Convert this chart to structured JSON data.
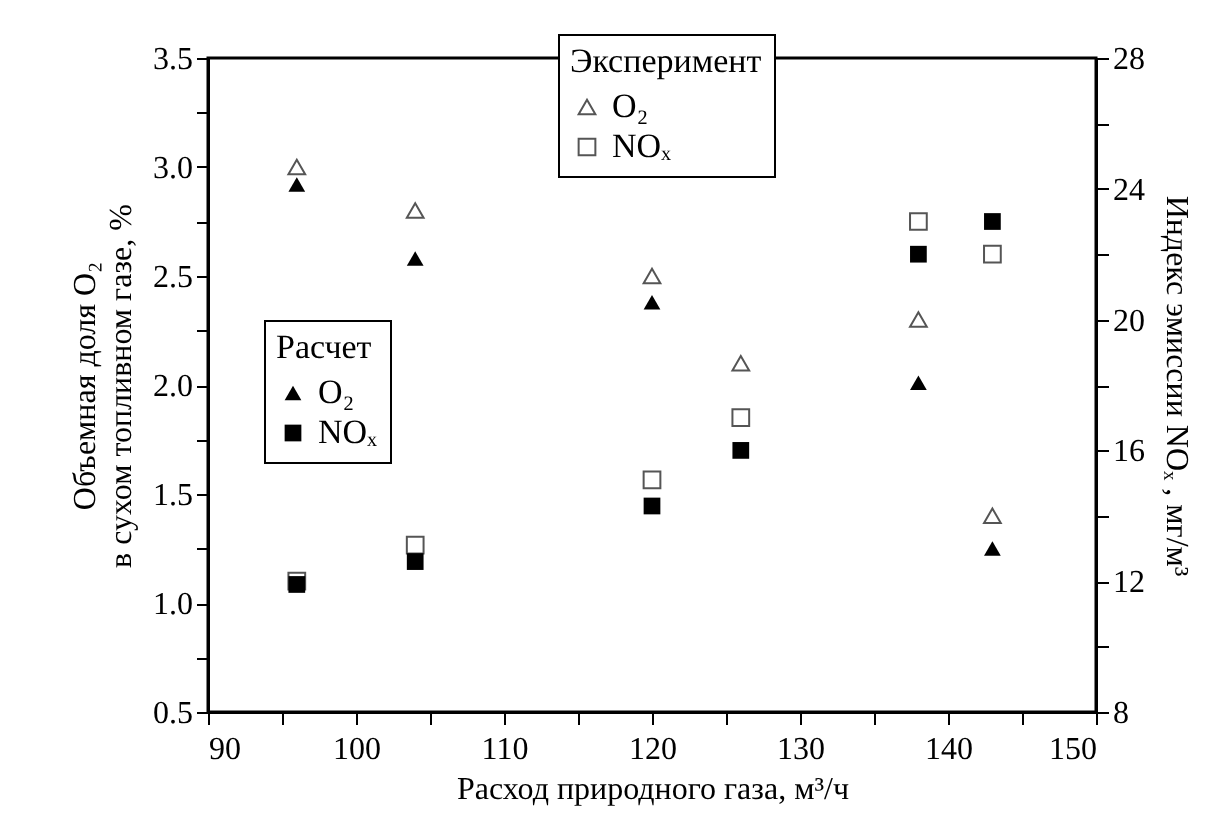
{
  "chart_data": {
    "type": "scatter",
    "xlabel": "Расход природного газа, м³/ч",
    "ylabel": "Объемная доля O₂\nв сухом топливном газе, %",
    "y2label": "Индекс эмиссии NOₓ , мг/м³",
    "legend_title": [
      "Эксперимент",
      "Расчет"
    ],
    "legend": [
      "top",
      "left"
    ],
    "xlim": [
      90,
      150
    ],
    "xticks": [
      90,
      {
        "value": 95,
        "label": null
      },
      100,
      {
        "value": 105,
        "label": null
      },
      110,
      {
        "value": 115,
        "label": null
      },
      120,
      {
        "value": 125,
        "label": null
      },
      130,
      {
        "value": 135,
        "label": null
      },
      140,
      {
        "value": 145,
        "label": null
      },
      150
    ],
    "ylim": [
      0.5,
      3.5
    ],
    "yticks": [
      {
        "value": 0.5,
        "label": "0.5"
      },
      {
        "value": 0.75,
        "label": null
      },
      {
        "value": 1,
        "label": "1.0"
      },
      {
        "value": 1.25,
        "label": null
      },
      {
        "value": 1.5,
        "label": "1.5"
      },
      {
        "value": 1.75,
        "label": null
      },
      {
        "value": 2,
        "label": "2.0"
      },
      {
        "value": 2.25,
        "label": null
      },
      {
        "value": 2.5,
        "label": "2.5"
      },
      {
        "value": 2.75,
        "label": null
      },
      {
        "value": 3,
        "label": "3.0"
      },
      {
        "value": 3.25,
        "label": null
      },
      {
        "value": 3.5,
        "label": "3.5"
      }
    ],
    "y2lim": [
      8,
      28
    ],
    "y2ticks": [
      8,
      {
        "value": 10,
        "label": null
      },
      12,
      {
        "value": 14,
        "label": null
      },
      16,
      {
        "value": 18,
        "label": null
      },
      20,
      {
        "value": 22,
        "label": null
      },
      24,
      {
        "value": 26,
        "label": null
      },
      28
    ],
    "grid": false,
    "x": [
      96,
      104,
      120,
      126,
      138,
      143
    ],
    "series": [
      {
        "name": "O₂",
        "marker": "triangle-open",
        "color": "#555555",
        "values": [
          3.0,
          2.8,
          2.5,
          2.1,
          2.3,
          1.4
        ]
      },
      {
        "name": "NOₓ",
        "marker": "square-open",
        "color": "#555555",
        "axis": "y2",
        "values": [
          12.0,
          13.1,
          15.1,
          17.0,
          23.0,
          22.0
        ]
      },
      {
        "name": "O₂",
        "marker": "triangle",
        "color": "#000000",
        "values": [
          2.92,
          2.58,
          2.38,
          null,
          2.01,
          1.25
        ]
      },
      {
        "name": "NOₓ",
        "marker": "square",
        "color": "#000000",
        "axis": "y2",
        "values": [
          11.9,
          12.6,
          14.3,
          16.0,
          22.0,
          23.0
        ]
      }
    ]
  }
}
